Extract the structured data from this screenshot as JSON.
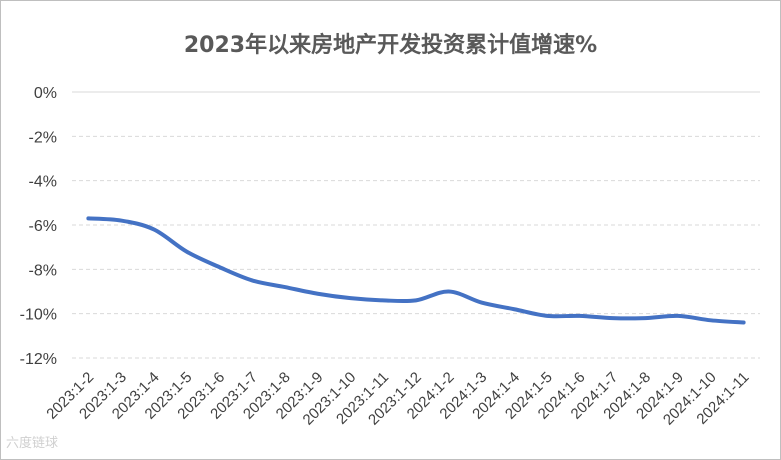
{
  "chart_data": {
    "type": "line",
    "title": "2023年以来房地产开发投资累计值增速%",
    "xlabel": "",
    "ylabel": "",
    "ylim": [
      -12,
      0
    ],
    "y_ticks": [
      "0%",
      "-2%",
      "-4%",
      "-6%",
      "-8%",
      "-10%",
      "-12%"
    ],
    "grid": "horizontal dashed",
    "legend": "none",
    "categories": [
      "2023:1-2",
      "2023:1-3",
      "2023:1-4",
      "2023:1-5",
      "2023:1-6",
      "2023:1-7",
      "2023:1-8",
      "2023:1-9",
      "2023:1-10",
      "2023:1-11",
      "2023:1-12",
      "2024:1-2",
      "2024:1-3",
      "2024:1-4",
      "2024:1-5",
      "2024:1-6",
      "2024:1-7",
      "2024:1-8",
      "2024:1-9",
      "2024:1-10",
      "2024:1-11"
    ],
    "series": [
      {
        "values": [
          -5.7,
          -5.8,
          -6.2,
          -7.2,
          -7.9,
          -8.5,
          -8.8,
          -9.1,
          -9.3,
          -9.4,
          -9.4,
          -9.0,
          -9.5,
          -9.8,
          -10.1,
          -10.1,
          -10.2,
          -10.2,
          -10.1,
          -10.3,
          -10.4
        ],
        "color": "#4472c4"
      }
    ]
  },
  "watermark": "六度链球"
}
